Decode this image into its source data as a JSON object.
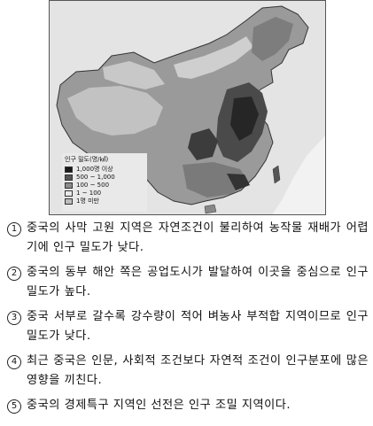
{
  "map": {
    "legend": {
      "title": "인구 밀도(명/㎢)",
      "items": [
        {
          "label": "1,000명 이상",
          "color": "#1a1a1a"
        },
        {
          "label": "500 ~ 1,000",
          "color": "#555555"
        },
        {
          "label": "100 ~ 500",
          "color": "#8c8c8c"
        },
        {
          "label": "1 ~ 100",
          "color": "#e8e8e8"
        },
        {
          "label": "1명 미만",
          "color": "#bdbdbd"
        }
      ]
    }
  },
  "options": [
    {
      "number": "1",
      "text": "중국의 사막 고원 지역은 자연조건이 불리하여 농작물 재배가 어렵기에 인구 밀도가 낮다."
    },
    {
      "number": "2",
      "text": "중국의 동부 해안 쪽은 공업도시가 발달하여 이곳을 중심으로 인구 밀도가 높다."
    },
    {
      "number": "3",
      "text": "중국 서부로 갈수록 강수량이 적어 벼농사 부적합 지역이므로 인구 밀도가 낮다."
    },
    {
      "number": "4",
      "text": "최근 중국은 인문, 사회적 조건보다 자연적 조건이 인구분포에 많은 영향을 끼친다."
    },
    {
      "number": "5",
      "text": "중국의 경제특구 지역인 선전은 인구 조밀 지역이다."
    }
  ]
}
